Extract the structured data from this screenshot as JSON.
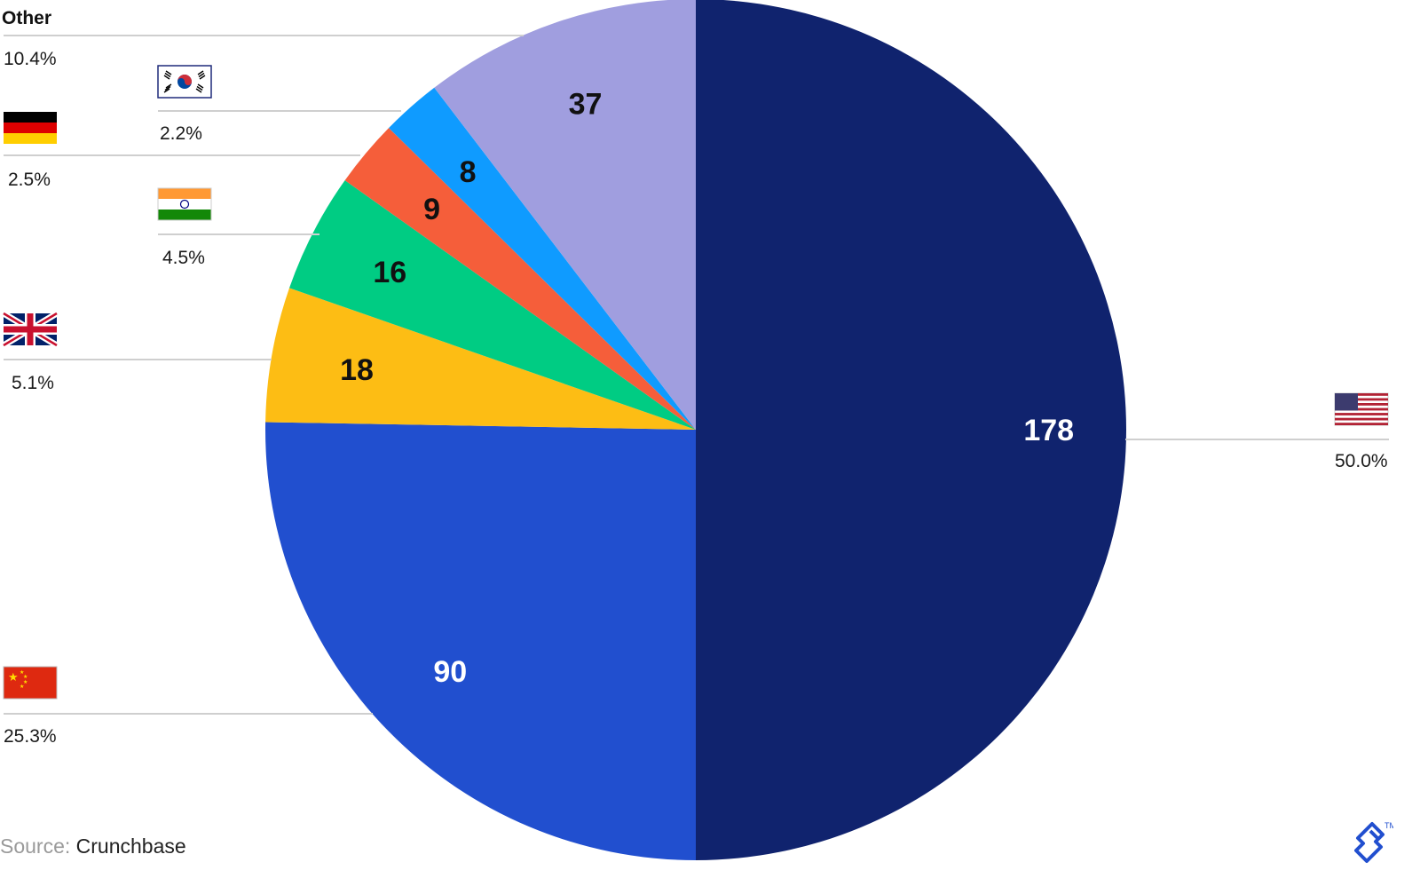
{
  "chart_data": {
    "type": "pie",
    "title": "",
    "slices": [
      {
        "country": "United States",
        "flag": "us-flag-icon",
        "value": 178,
        "percent_label": "50.0%",
        "color": "#10236e",
        "label_color": "#ffffff"
      },
      {
        "country": "China",
        "flag": "china-flag-icon",
        "value": 90,
        "percent_label": "25.3%",
        "color": "#214fcf",
        "label_color": "#ffffff"
      },
      {
        "country": "United Kingdom",
        "flag": "uk-flag-icon",
        "value": 18,
        "percent_label": "5.1%",
        "color": "#fdbd14",
        "label_color": "#111111"
      },
      {
        "country": "India",
        "flag": "india-flag-icon",
        "value": 16,
        "percent_label": "4.5%",
        "color": "#00cc83",
        "label_color": "#111111"
      },
      {
        "country": "Germany",
        "flag": "germany-flag-icon",
        "value": 9,
        "percent_label": "2.5%",
        "color": "#f55e3a",
        "label_color": "#111111"
      },
      {
        "country": "South Korea",
        "flag": "korea-flag-icon",
        "value": 8,
        "percent_label": "2.2%",
        "color": "#0f9bff",
        "label_color": "#111111"
      },
      {
        "country": "Other",
        "flag": "",
        "value": 37,
        "percent_label": "10.4%",
        "color": "#a09edf",
        "label_color": "#111111",
        "legend_text": "Other"
      }
    ]
  },
  "footer": {
    "source_prefix": "Source:",
    "source_name": "Crunchbase",
    "logo": "toptal-logo-icon",
    "trademark": "TM"
  }
}
